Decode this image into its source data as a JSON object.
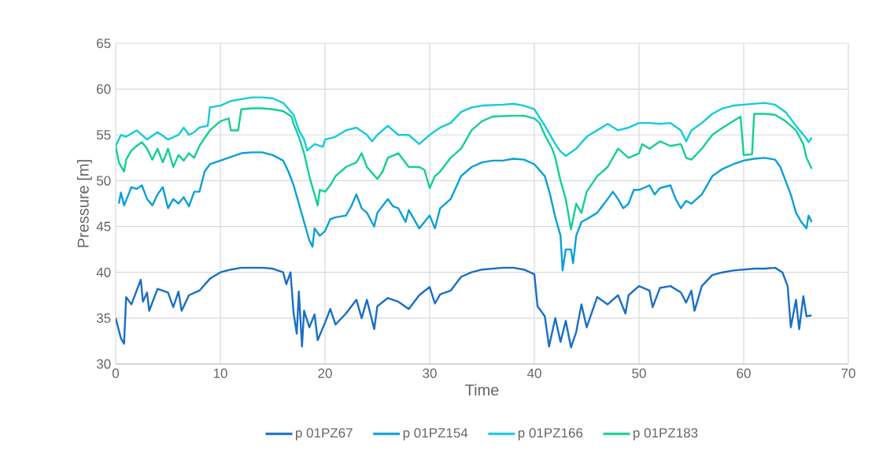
{
  "chart_data": {
    "type": "line",
    "xlabel": "Time",
    "ylabel": "Pressure [m]",
    "xlim": [
      0,
      70
    ],
    "ylim": [
      30,
      65
    ],
    "xticks": [
      0,
      10,
      20,
      30,
      40,
      50,
      60,
      70
    ],
    "yticks": [
      30,
      35,
      40,
      45,
      50,
      55,
      60,
      65
    ],
    "grid": true,
    "legend": "bottom",
    "marker": "none",
    "line_style": "solid",
    "series": [
      {
        "name": "p 01PZ67",
        "color": "#1a6fc4",
        "x": [
          0,
          0.5,
          0.8,
          1,
          1.5,
          2,
          2.4,
          2.6,
          3,
          3.2,
          4,
          5,
          5.5,
          6,
          6.3,
          7,
          8,
          9,
          10,
          11,
          12,
          14,
          15,
          16,
          16.3,
          16.7,
          17,
          17.3,
          17.5,
          17.8,
          18,
          18.5,
          19,
          19.3,
          20,
          20.5,
          21,
          22,
          23,
          23.5,
          24,
          24.7,
          25,
          26,
          27,
          28,
          29,
          30,
          30.5,
          31,
          32,
          33,
          34,
          35,
          37,
          38,
          39,
          40,
          40.3,
          41,
          41.4,
          42,
          42.5,
          43,
          43.5,
          44,
          44.5,
          45,
          46,
          47,
          48,
          48.7,
          49,
          50,
          51,
          51.3,
          52,
          53,
          54,
          54.5,
          55,
          55.3,
          56,
          57,
          58,
          59,
          60,
          61,
          62,
          63,
          63.7,
          64.2,
          64.5,
          65,
          65.3,
          65.7,
          66,
          66.5
        ],
        "values": [
          35,
          32.8,
          32.2,
          37.3,
          36.5,
          38,
          39.2,
          36.8,
          37.8,
          35.8,
          38.2,
          37.8,
          36.2,
          37.9,
          35.8,
          37.5,
          38,
          39.3,
          40,
          40.3,
          40.5,
          40.5,
          40.4,
          40,
          38.7,
          40,
          35.5,
          33.3,
          37.9,
          31.9,
          35.8,
          34,
          35.4,
          32.6,
          34.5,
          36,
          34.3,
          35.5,
          37,
          35,
          37,
          33.8,
          36.3,
          37.2,
          36.8,
          36,
          37.5,
          38.4,
          36.6,
          37.6,
          38,
          39.5,
          40,
          40.3,
          40.5,
          40.5,
          40.3,
          39.8,
          36.3,
          35.2,
          31.9,
          35,
          32.4,
          34.7,
          31.8,
          33.5,
          36.5,
          34,
          37.3,
          36.5,
          37.5,
          35.5,
          37.5,
          38.5,
          38,
          36.2,
          38.3,
          38.5,
          37.8,
          36.7,
          38,
          35.8,
          38.5,
          39.7,
          40,
          40.2,
          40.3,
          40.4,
          40.4,
          40.5,
          40,
          38.5,
          34,
          37,
          33.8,
          37.4,
          35.2,
          35.3
        ]
      },
      {
        "name": "p 01PZ154",
        "color": "#0aa0d8",
        "x": [
          0.3,
          0.5,
          0.8,
          1.5,
          2,
          2.5,
          3,
          3.5,
          4,
          4.5,
          5,
          5.5,
          6,
          6.5,
          7,
          7.5,
          8,
          8.5,
          9,
          10,
          11,
          12,
          13,
          14,
          15,
          16,
          16.5,
          17,
          17.5,
          18,
          18.5,
          18.8,
          19,
          19.5,
          20,
          20.5,
          21,
          22,
          22.5,
          23,
          23.5,
          24,
          24.7,
          25,
          26,
          26.5,
          27,
          27.7,
          28,
          29,
          29.5,
          30,
          30.5,
          31,
          32,
          33,
          34,
          35,
          36,
          37,
          38,
          39,
          40,
          41,
          41.5,
          42,
          42.5,
          42.7,
          43,
          43.5,
          43.7,
          44,
          44.5,
          45,
          46,
          47,
          47.5,
          48,
          48.5,
          49,
          49.5,
          50,
          51,
          51.5,
          52,
          53,
          53.5,
          54,
          54.5,
          55,
          56,
          57,
          58,
          59,
          60,
          61,
          62,
          63,
          63.5,
          64,
          64.5,
          65,
          65.5,
          66,
          66.2,
          66.5
        ],
        "values": [
          47.5,
          48.7,
          47.3,
          49.3,
          49.1,
          49.5,
          48,
          47.3,
          48.5,
          49.3,
          47,
          48,
          47.5,
          48.2,
          47.2,
          48.8,
          48.8,
          51,
          51.8,
          52.2,
          52.6,
          53,
          53.1,
          53.1,
          52.8,
          52.2,
          51,
          49.5,
          47.5,
          45.5,
          43.5,
          42.8,
          44.8,
          44,
          44.5,
          45.8,
          46,
          46.2,
          47.2,
          48.5,
          47,
          46.5,
          45,
          46.5,
          48,
          47.2,
          47,
          45.5,
          46.8,
          44.8,
          45.5,
          46.2,
          44.8,
          47,
          48,
          50.5,
          51.5,
          52,
          52.2,
          52.2,
          52.4,
          52.3,
          51.8,
          50.5,
          48.5,
          46,
          44,
          40.2,
          42.5,
          42.5,
          41,
          44,
          45.5,
          45.8,
          46.5,
          48,
          48.8,
          48,
          47,
          47.5,
          49,
          49,
          49.5,
          48.5,
          49.2,
          49.5,
          48,
          47,
          47.8,
          47.5,
          48.5,
          50.5,
          51.3,
          51.8,
          52.2,
          52.4,
          52.5,
          52.3,
          51.5,
          50,
          48.5,
          46.5,
          45.5,
          44.8,
          46.2,
          45.5
        ]
      },
      {
        "name": "p 01PZ166",
        "color": "#14cbdc",
        "x": [
          0,
          0.5,
          1,
          2,
          3,
          4,
          5,
          6,
          6.5,
          7,
          7.5,
          8,
          8.8,
          9,
          10,
          11,
          12,
          13,
          14,
          15,
          16,
          17,
          17.5,
          18,
          18.3,
          19,
          19.8,
          20,
          21,
          22,
          23,
          24,
          24.5,
          25,
          26,
          27,
          28,
          29,
          30,
          31,
          32,
          33,
          34,
          35,
          37,
          38,
          39,
          40,
          41,
          42,
          42.5,
          43,
          44,
          45,
          46,
          47,
          48,
          49,
          50,
          51,
          52,
          53,
          54,
          54.5,
          55,
          56,
          57,
          58,
          59,
          60,
          61,
          62,
          63,
          64,
          65,
          66,
          66.2,
          66.5
        ],
        "values": [
          53.8,
          55,
          54.8,
          55.5,
          54.5,
          55.3,
          54.5,
          55,
          55.8,
          55,
          55.3,
          55.8,
          56,
          58,
          58.2,
          58.7,
          58.9,
          59.1,
          59.1,
          59,
          58.5,
          57.2,
          55.5,
          54.5,
          53.3,
          54,
          53.7,
          54.5,
          54.8,
          55.5,
          55.8,
          55,
          54.3,
          55,
          56,
          55,
          55,
          54,
          55,
          55.8,
          56.3,
          57.5,
          58,
          58.2,
          58.3,
          58.4,
          58.2,
          57.8,
          56,
          54,
          53.2,
          52.7,
          53.5,
          54.8,
          55.5,
          56.2,
          55.5,
          55.8,
          56.3,
          56.3,
          56.2,
          56.3,
          55.5,
          54.3,
          55.5,
          56.3,
          57.3,
          57.9,
          58.2,
          58.3,
          58.4,
          58.5,
          58.3,
          57.5,
          56,
          54.6,
          54.2,
          54.7
        ]
      },
      {
        "name": "p 01PZ183",
        "color": "#14cf94",
        "x": [
          0,
          0.3,
          0.8,
          1,
          1.5,
          2,
          2.5,
          3,
          3.5,
          4,
          4.5,
          5,
          5.5,
          6,
          6.5,
          7,
          7.5,
          8,
          9,
          9.5,
          10,
          10.8,
          11,
          11.7,
          12,
          13,
          14,
          15,
          16,
          16.8,
          17,
          17.5,
          18,
          18.5,
          19,
          19.3,
          19.5,
          20,
          20.5,
          21,
          22,
          23,
          23.5,
          24,
          25,
          25.5,
          26,
          27,
          28,
          29,
          29.5,
          30,
          30.5,
          31,
          32,
          33,
          34,
          35,
          36,
          38,
          39,
          40,
          40.5,
          41,
          41.7,
          42,
          42.5,
          43,
          43.5,
          44,
          44.5,
          45,
          46,
          47,
          48,
          49,
          50,
          50.3,
          51,
          52,
          53,
          54,
          54.5,
          55,
          56,
          57,
          58,
          59,
          59.7,
          60,
          60.8,
          61,
          62,
          63,
          64,
          65,
          65.7,
          66,
          66.5
        ],
        "values": [
          53.8,
          52,
          51,
          52.3,
          53.3,
          53.8,
          54.2,
          53.5,
          52.3,
          53.5,
          52,
          53.5,
          51.5,
          52.8,
          52.2,
          53,
          52.5,
          53.8,
          55.5,
          56,
          56.5,
          56.8,
          55.5,
          55.5,
          57.8,
          57.9,
          57.9,
          57.8,
          57.6,
          57,
          56.2,
          54.8,
          53,
          50.5,
          48.5,
          47.3,
          49,
          48.8,
          49.5,
          50.5,
          51.5,
          52,
          53,
          51.5,
          50.2,
          51,
          52.5,
          53,
          51.5,
          51.5,
          51.2,
          49.2,
          50.5,
          51,
          52.5,
          53.5,
          55.5,
          56.5,
          57,
          57.1,
          57.1,
          56.8,
          56.3,
          55,
          53.5,
          52.5,
          50,
          48,
          44.7,
          47.5,
          46.5,
          48.8,
          50.5,
          51.5,
          53.5,
          52.5,
          53,
          54,
          53.5,
          54.3,
          53.8,
          54,
          52.5,
          52.3,
          53.5,
          55,
          55.8,
          56.5,
          57,
          52.8,
          52.9,
          57.3,
          57.3,
          57.2,
          56.5,
          55.5,
          54,
          52.5,
          51.3
        ]
      }
    ]
  }
}
